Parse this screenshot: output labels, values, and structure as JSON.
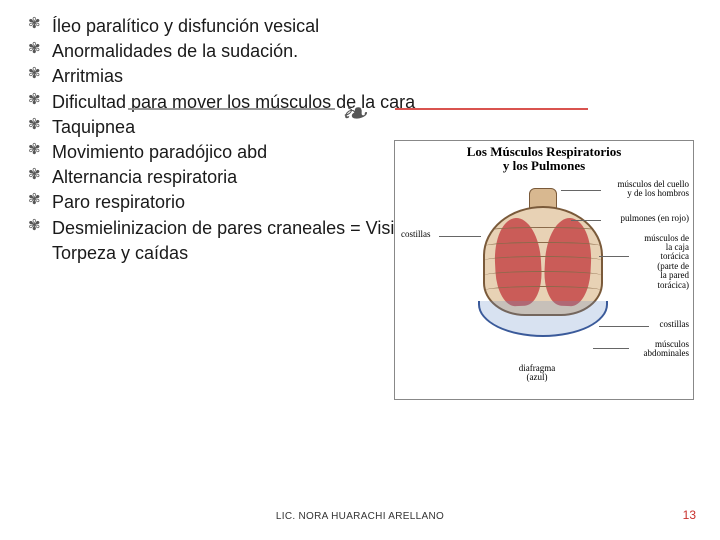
{
  "bullets": [
    "Íleo paralítico y disfunción vesical",
    "Anormalidades de la sudación.",
    "Arritmias",
    "Dificultad para mover los músculos de la cara",
    "Taquipnea",
    "Movimiento paradójico abd",
    "Alternancia respiratoria",
    "Paro respiratorio",
    "Desmielinizacion de pares craneales = Visión borrosa"
  ],
  "continuation": "Torpeza y caídas",
  "image": {
    "title_line1": "Los Músculos Respiratorios",
    "title_line2": "y los Pulmones",
    "labels": {
      "neck": "músculos del cuello\ny de los hombros",
      "lungs": "pulmones (en rojo)",
      "thoracic": "músculos de\nla caja\ntorácica\n(parte de\nla pared\ntorácica)",
      "ribs_left": "costillas",
      "ribs_right": "costillas",
      "abdominal": "músculos\nabdominales",
      "diaphragm": "diafragma\n(azul)"
    }
  },
  "footer": {
    "author": "LIC. NORA HUARACHI ARELLANO",
    "page": "13"
  },
  "colors": {
    "accent": "#c9302c",
    "text": "#1a1a1a",
    "lung": "#c44848",
    "diaphragm": "#3a5a9a"
  }
}
